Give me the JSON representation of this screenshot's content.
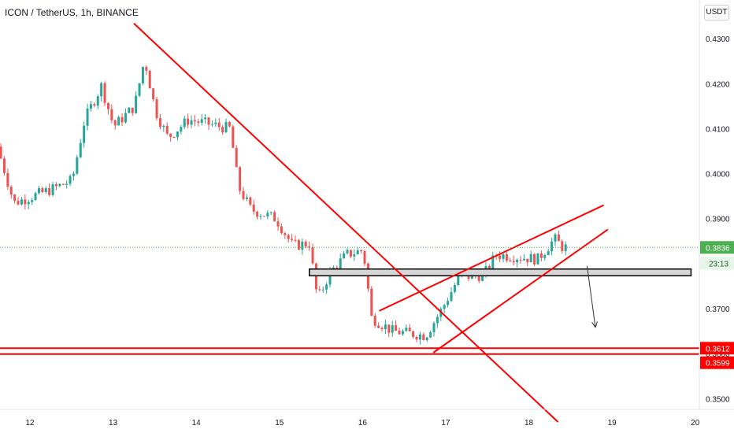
{
  "header": {
    "title": "ICON / TetherUS, 1h, BINANCE",
    "currency_button": "USDT"
  },
  "price_badges": {
    "last_price": "0.3836",
    "countdown": "23:13",
    "support_high": "0.3612",
    "support_low": "0.3599"
  },
  "colors": {
    "up": "#26a69a",
    "down": "#ef5350",
    "drawing": "#ff0000",
    "last_price_badge": "#4caf50"
  },
  "chart_data": {
    "type": "candlestick",
    "title": "ICON / TetherUS, 1h, BINANCE",
    "y_axis": {
      "ticks": [
        "0.4300",
        "0.4200",
        "0.4100",
        "0.4000",
        "0.3900",
        "0.3800",
        "0.3700",
        "0.3600",
        "0.3500"
      ],
      "ylim": [
        0.3476,
        0.4386
      ],
      "side": "right"
    },
    "x_axis": {
      "ticks": [
        "12",
        "13",
        "14",
        "15",
        "16",
        "17",
        "18",
        "19",
        "20"
      ],
      "xlim": [
        11.64,
        20.05
      ]
    },
    "last_price": 0.3836,
    "grid": false,
    "key_points": [
      {
        "day": 11.65,
        "price": 0.406
      },
      {
        "day": 11.85,
        "price": 0.3935
      },
      {
        "day": 12.3,
        "price": 0.3965
      },
      {
        "day": 12.55,
        "price": 0.3985
      },
      {
        "day": 12.7,
        "price": 0.412
      },
      {
        "day": 12.9,
        "price": 0.4195
      },
      {
        "day": 13.05,
        "price": 0.4105
      },
      {
        "day": 13.3,
        "price": 0.415
      },
      {
        "day": 13.42,
        "price": 0.4255
      },
      {
        "day": 13.55,
        "price": 0.414
      },
      {
        "day": 13.7,
        "price": 0.408
      },
      {
        "day": 13.95,
        "price": 0.412
      },
      {
        "day": 14.2,
        "price": 0.411
      },
      {
        "day": 14.45,
        "price": 0.41
      },
      {
        "day": 14.55,
        "price": 0.397
      },
      {
        "day": 14.7,
        "price": 0.392
      },
      {
        "day": 15.0,
        "price": 0.39
      },
      {
        "day": 15.2,
        "price": 0.384
      },
      {
        "day": 15.4,
        "price": 0.3845
      },
      {
        "day": 15.5,
        "price": 0.372
      },
      {
        "day": 15.65,
        "price": 0.378
      },
      {
        "day": 15.85,
        "price": 0.382
      },
      {
        "day": 16.05,
        "price": 0.383
      },
      {
        "day": 16.15,
        "price": 0.368
      },
      {
        "day": 16.4,
        "price": 0.365
      },
      {
        "day": 16.8,
        "price": 0.364
      },
      {
        "day": 17.0,
        "price": 0.37
      },
      {
        "day": 17.2,
        "price": 0.377
      },
      {
        "day": 17.5,
        "price": 0.3775
      },
      {
        "day": 17.65,
        "price": 0.382
      },
      {
        "day": 17.9,
        "price": 0.3815
      },
      {
        "day": 18.15,
        "price": 0.381
      },
      {
        "day": 18.35,
        "price": 0.3855
      },
      {
        "day": 18.45,
        "price": 0.3836
      }
    ],
    "drawings": {
      "trendlines": [
        {
          "from": {
            "day": 13.25,
            "price": 0.4334
          },
          "to": {
            "day": 18.35,
            "price": 0.3448
          }
        },
        {
          "from": {
            "day": 16.2,
            "price": 0.3695
          },
          "to": {
            "day": 18.9,
            "price": 0.393
          }
        },
        {
          "from": {
            "day": 16.85,
            "price": 0.3602
          },
          "to": {
            "day": 18.95,
            "price": 0.3876
          }
        },
        {
          "from": {
            "day": 18.7,
            "price": 0.3795
          },
          "to": {
            "day": 18.8,
            "price": 0.3658
          },
          "arrow": true
        }
      ],
      "horizontal_lines": [
        0.3612,
        0.3599
      ],
      "zone": {
        "from_day": 15.36,
        "to_day": 19.95,
        "top": 0.3788,
        "bottom": 0.3773
      }
    }
  }
}
